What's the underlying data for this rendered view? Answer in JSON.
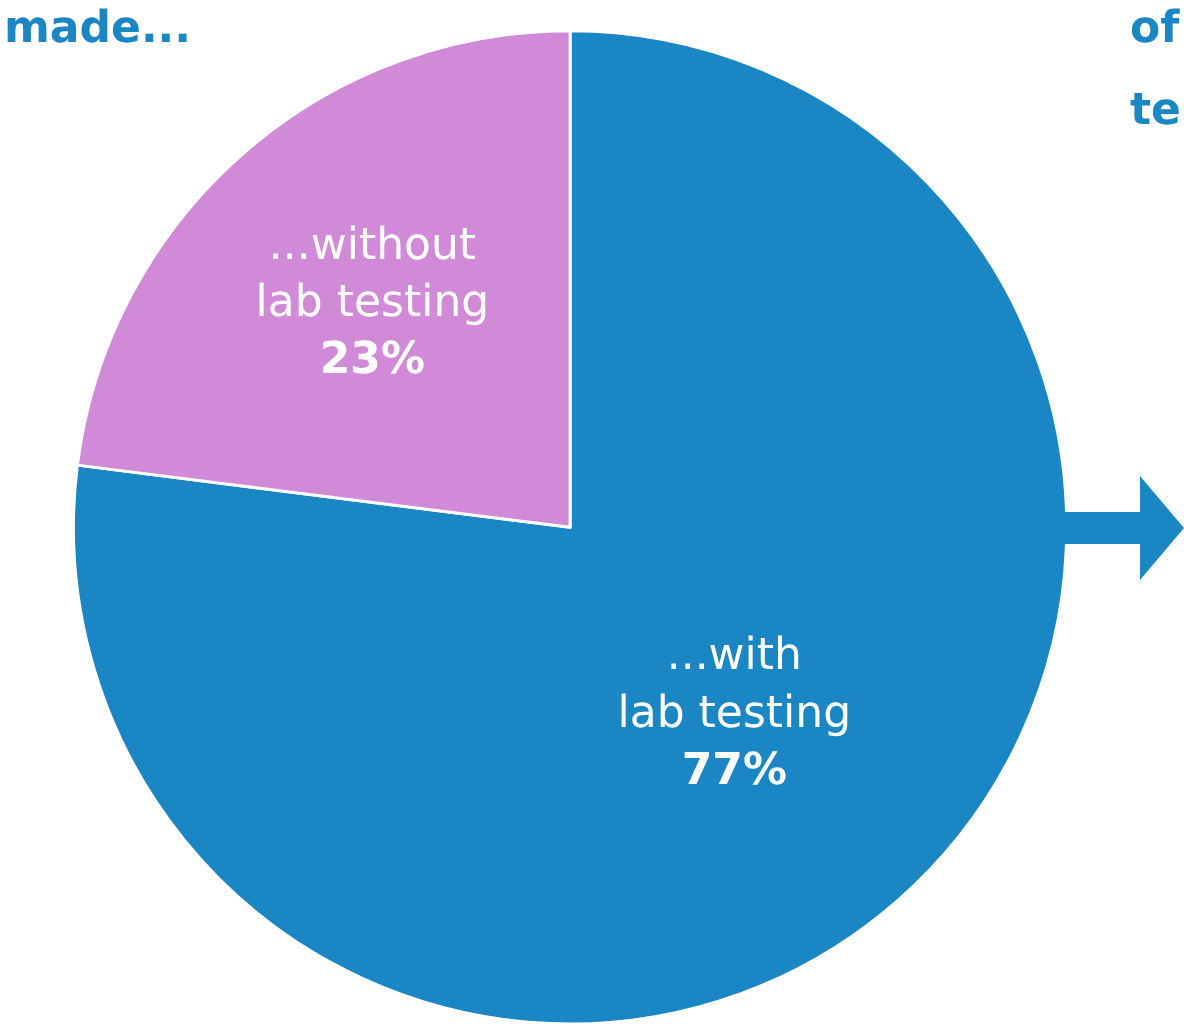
{
  "chart_data": {
    "type": "pie",
    "categories": [
      "...with\nlab testing",
      "...without\nlab testing"
    ],
    "values": [
      77,
      23
    ],
    "value_labels": [
      "77%",
      "23%"
    ],
    "colors": [
      "#1a86c4",
      "#d08ad8"
    ],
    "annotations": [
      "made...",
      "of",
      "te"
    ],
    "legend": false
  }
}
